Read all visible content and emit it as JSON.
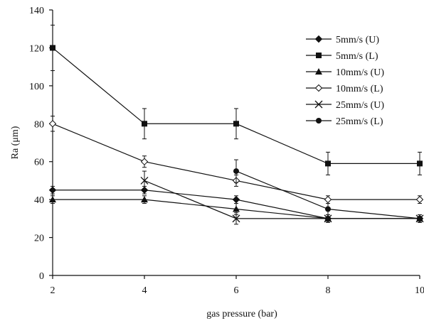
{
  "chart_data": {
    "type": "line",
    "xlabel": "gas pressure (bar)",
    "ylabel": "Ra (μm)",
    "xlim": [
      2,
      10
    ],
    "ylim": [
      0,
      140
    ],
    "x_ticks": [
      2,
      4,
      6,
      8,
      10
    ],
    "y_ticks": [
      0,
      20,
      40,
      60,
      80,
      100,
      120,
      140
    ],
    "x_tick_labels": [
      "2",
      "4",
      "6",
      "8",
      "10"
    ],
    "y_tick_labels": [
      "0",
      "20",
      "40",
      "60",
      "80",
      "100",
      "120",
      "140"
    ],
    "grid": false,
    "legend_position": "top-right",
    "series": [
      {
        "name": "5mm/s (U)",
        "marker": "diamond-filled",
        "x": [
          2,
          4,
          6,
          8,
          10
        ],
        "y": [
          45,
          45,
          40,
          30,
          30
        ],
        "err": [
          2,
          2,
          2,
          2,
          2
        ]
      },
      {
        "name": "5mm/s (L)",
        "marker": "square-filled",
        "x": [
          2,
          4,
          6,
          8,
          10
        ],
        "y": [
          120,
          80,
          80,
          59,
          59
        ],
        "err": [
          12,
          8,
          8,
          6,
          6
        ]
      },
      {
        "name": "10mm/s (U)",
        "marker": "triangle-filled",
        "x": [
          2,
          4,
          6,
          8,
          10
        ],
        "y": [
          40,
          40,
          35,
          30,
          30
        ],
        "err": [
          2,
          2,
          3,
          2,
          2
        ]
      },
      {
        "name": "10mm/s (L)",
        "marker": "diamond-open",
        "x": [
          2,
          4,
          6,
          8,
          10
        ],
        "y": [
          80,
          60,
          50,
          40,
          40
        ],
        "err": [
          4,
          3,
          3,
          2,
          2
        ]
      },
      {
        "name": "25mm/s (U)",
        "marker": "x",
        "x": [
          4,
          6,
          8,
          10
        ],
        "y": [
          50,
          30,
          30,
          30
        ],
        "err": [
          5,
          3,
          2,
          2
        ]
      },
      {
        "name": "25mm/s (L)",
        "marker": "circle-filled",
        "x": [
          6,
          8,
          10
        ],
        "y": [
          55,
          35,
          30
        ],
        "err": [
          6,
          3,
          2
        ]
      }
    ]
  }
}
